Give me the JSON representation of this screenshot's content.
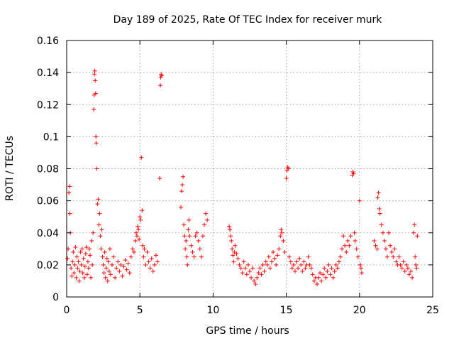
{
  "chart_data": {
    "type": "scatter",
    "title": "Day 189 of 2025, Rate Of TEC Index for receiver murk",
    "xlabel": "GPS time / hours",
    "ylabel": "ROTI / TECUs",
    "xlim": [
      0,
      25
    ],
    "ylim": [
      0,
      0.16
    ],
    "x_ticks": [
      0,
      5,
      10,
      15,
      20,
      25
    ],
    "x_tick_labels": [
      "0",
      "5",
      "10",
      "15",
      "20",
      "25"
    ],
    "y_ticks": [
      0,
      0.02,
      0.04,
      0.06,
      0.08,
      0.1,
      0.12,
      0.14,
      0.16
    ],
    "y_tick_labels": [
      "0",
      "0.02",
      "0.04",
      "0.06",
      "0.08",
      "0.1",
      "0.12",
      "0.14",
      "0.16"
    ],
    "grid": true,
    "marker": "plus",
    "color": "#ff0000",
    "series": [
      {
        "points": [
          [
            0.05,
            0.024
          ],
          [
            0.1,
            0.03
          ],
          [
            0.15,
            0.065
          ],
          [
            0.2,
            0.069
          ],
          [
            0.22,
            0.052
          ],
          [
            0.25,
            0.04
          ],
          [
            0.3,
            0.018
          ],
          [
            0.35,
            0.013
          ],
          [
            0.4,
            0.022
          ],
          [
            0.45,
            0.028
          ],
          [
            0.5,
            0.015
          ],
          [
            0.55,
            0.02
          ],
          [
            0.6,
            0.031
          ],
          [
            0.65,
            0.012
          ],
          [
            0.7,
            0.025
          ],
          [
            0.75,
            0.018
          ],
          [
            0.8,
            0.022
          ],
          [
            0.85,
            0.01
          ],
          [
            0.9,
            0.016
          ],
          [
            0.95,
            0.028
          ],
          [
            1.0,
            0.02
          ],
          [
            1.05,
            0.03
          ],
          [
            1.1,
            0.015
          ],
          [
            1.15,
            0.024
          ],
          [
            1.2,
            0.012
          ],
          [
            1.25,
            0.019
          ],
          [
            1.3,
            0.027
          ],
          [
            1.35,
            0.031
          ],
          [
            1.4,
            0.014
          ],
          [
            1.45,
            0.022
          ],
          [
            1.5,
            0.018
          ],
          [
            1.55,
            0.03
          ],
          [
            1.6,
            0.026
          ],
          [
            1.65,
            0.012
          ],
          [
            1.7,
            0.035
          ],
          [
            1.75,
            0.02
          ],
          [
            1.8,
            0.04
          ],
          [
            1.85,
            0.117
          ],
          [
            1.88,
            0.126
          ],
          [
            1.9,
            0.139
          ],
          [
            1.92,
            0.141
          ],
          [
            1.95,
            0.135
          ],
          [
            1.98,
            0.127
          ],
          [
            2.0,
            0.1
          ],
          [
            2.02,
            0.096
          ],
          [
            2.05,
            0.08
          ],
          [
            2.1,
            0.058
          ],
          [
            2.15,
            0.061
          ],
          [
            2.2,
            0.045
          ],
          [
            2.25,
            0.052
          ],
          [
            2.3,
            0.038
          ],
          [
            2.35,
            0.03
          ],
          [
            2.4,
            0.042
          ],
          [
            2.45,
            0.025
          ],
          [
            2.5,
            0.02
          ],
          [
            2.55,
            0.015
          ],
          [
            2.6,
            0.028
          ],
          [
            2.65,
            0.012
          ],
          [
            2.7,
            0.018
          ],
          [
            2.75,
            0.024
          ],
          [
            2.8,
            0.01
          ],
          [
            2.85,
            0.022
          ],
          [
            2.9,
            0.016
          ],
          [
            2.95,
            0.03
          ],
          [
            3.0,
            0.014
          ],
          [
            3.1,
            0.02
          ],
          [
            3.2,
            0.025
          ],
          [
            3.3,
            0.012
          ],
          [
            3.4,
            0.018
          ],
          [
            3.5,
            0.022
          ],
          [
            3.6,
            0.016
          ],
          [
            3.7,
            0.02
          ],
          [
            3.8,
            0.013
          ],
          [
            3.9,
            0.019
          ],
          [
            4.0,
            0.023
          ],
          [
            4.1,
            0.017
          ],
          [
            4.2,
            0.021
          ],
          [
            4.3,
            0.015
          ],
          [
            4.4,
            0.025
          ],
          [
            4.5,
            0.03
          ],
          [
            4.6,
            0.028
          ],
          [
            4.7,
            0.035
          ],
          [
            4.75,
            0.04
          ],
          [
            4.8,
            0.038
          ],
          [
            4.85,
            0.044
          ],
          [
            4.9,
            0.042
          ],
          [
            4.95,
            0.036
          ],
          [
            5.0,
            0.05
          ],
          [
            5.05,
            0.048
          ],
          [
            5.1,
            0.087
          ],
          [
            5.15,
            0.054
          ],
          [
            5.2,
            0.032
          ],
          [
            5.25,
            0.025
          ],
          [
            5.3,
            0.03
          ],
          [
            5.4,
            0.02
          ],
          [
            5.5,
            0.028
          ],
          [
            5.6,
            0.022
          ],
          [
            5.7,
            0.018
          ],
          [
            5.8,
            0.024
          ],
          [
            5.9,
            0.016
          ],
          [
            6.0,
            0.02
          ],
          [
            6.1,
            0.026
          ],
          [
            6.2,
            0.022
          ],
          [
            6.35,
            0.074
          ],
          [
            6.4,
            0.132
          ],
          [
            6.42,
            0.137
          ],
          [
            6.45,
            0.139
          ],
          [
            6.48,
            0.138
          ],
          [
            7.8,
            0.056
          ],
          [
            7.85,
            0.066
          ],
          [
            7.9,
            0.07
          ],
          [
            7.95,
            0.075
          ],
          [
            8.0,
            0.045
          ],
          [
            8.05,
            0.038
          ],
          [
            8.1,
            0.03
          ],
          [
            8.15,
            0.035
          ],
          [
            8.2,
            0.025
          ],
          [
            8.25,
            0.02
          ],
          [
            8.3,
            0.042
          ],
          [
            8.35,
            0.048
          ],
          [
            8.4,
            0.038
          ],
          [
            8.5,
            0.032
          ],
          [
            8.6,
            0.028
          ],
          [
            8.7,
            0.025
          ],
          [
            8.8,
            0.038
          ],
          [
            8.9,
            0.04
          ],
          [
            9.0,
            0.035
          ],
          [
            9.1,
            0.03
          ],
          [
            9.2,
            0.025
          ],
          [
            9.3,
            0.038
          ],
          [
            9.4,
            0.045
          ],
          [
            9.5,
            0.052
          ],
          [
            9.6,
            0.048
          ],
          [
            11.1,
            0.044
          ],
          [
            11.15,
            0.042
          ],
          [
            11.2,
            0.038
          ],
          [
            11.25,
            0.035
          ],
          [
            11.3,
            0.03
          ],
          [
            11.35,
            0.026
          ],
          [
            11.4,
            0.022
          ],
          [
            11.45,
            0.028
          ],
          [
            11.5,
            0.032
          ],
          [
            11.6,
            0.027
          ],
          [
            11.7,
            0.024
          ],
          [
            11.8,
            0.02
          ],
          [
            11.9,
            0.018
          ],
          [
            12.0,
            0.015
          ],
          [
            12.1,
            0.022
          ],
          [
            12.2,
            0.018
          ],
          [
            12.3,
            0.014
          ],
          [
            12.4,
            0.02
          ],
          [
            12.5,
            0.016
          ],
          [
            12.6,
            0.012
          ],
          [
            12.7,
            0.018
          ],
          [
            12.8,
            0.01
          ],
          [
            12.9,
            0.008
          ],
          [
            13.0,
            0.012
          ],
          [
            13.1,
            0.015
          ],
          [
            13.2,
            0.018
          ],
          [
            13.3,
            0.014
          ],
          [
            13.4,
            0.02
          ],
          [
            13.5,
            0.016
          ],
          [
            13.6,
            0.022
          ],
          [
            13.7,
            0.02
          ],
          [
            13.8,
            0.025
          ],
          [
            13.9,
            0.018
          ],
          [
            14.0,
            0.022
          ],
          [
            14.1,
            0.028
          ],
          [
            14.2,
            0.024
          ],
          [
            14.3,
            0.02
          ],
          [
            14.4,
            0.026
          ],
          [
            14.5,
            0.03
          ],
          [
            14.6,
            0.038
          ],
          [
            14.65,
            0.042
          ],
          [
            14.7,
            0.04
          ],
          [
            14.8,
            0.035
          ],
          [
            14.9,
            0.028
          ],
          [
            15.0,
            0.074
          ],
          [
            15.05,
            0.079
          ],
          [
            15.1,
            0.081
          ],
          [
            15.15,
            0.08
          ],
          [
            15.2,
            0.025
          ],
          [
            15.3,
            0.022
          ],
          [
            15.4,
            0.018
          ],
          [
            15.5,
            0.02
          ],
          [
            15.6,
            0.016
          ],
          [
            15.7,
            0.022
          ],
          [
            15.8,
            0.018
          ],
          [
            15.9,
            0.024
          ],
          [
            16.0,
            0.02
          ],
          [
            16.1,
            0.016
          ],
          [
            16.2,
            0.022
          ],
          [
            16.3,
            0.018
          ],
          [
            16.4,
            0.02
          ],
          [
            16.5,
            0.025
          ],
          [
            16.6,
            0.02
          ],
          [
            16.7,
            0.018
          ],
          [
            16.8,
            0.014
          ],
          [
            16.9,
            0.01
          ],
          [
            17.0,
            0.012
          ],
          [
            17.1,
            0.008
          ],
          [
            17.2,
            0.012
          ],
          [
            17.3,
            0.015
          ],
          [
            17.4,
            0.01
          ],
          [
            17.5,
            0.014
          ],
          [
            17.6,
            0.018
          ],
          [
            17.7,
            0.012
          ],
          [
            17.8,
            0.016
          ],
          [
            17.9,
            0.02
          ],
          [
            18.0,
            0.014
          ],
          [
            18.1,
            0.018
          ],
          [
            18.2,
            0.012
          ],
          [
            18.3,
            0.016
          ],
          [
            18.4,
            0.02
          ],
          [
            18.5,
            0.018
          ],
          [
            18.6,
            0.022
          ],
          [
            18.7,
            0.025
          ],
          [
            18.8,
            0.03
          ],
          [
            18.9,
            0.038
          ],
          [
            19.0,
            0.032
          ],
          [
            19.1,
            0.028
          ],
          [
            19.2,
            0.035
          ],
          [
            19.3,
            0.032
          ],
          [
            19.4,
            0.038
          ],
          [
            19.5,
            0.076
          ],
          [
            19.55,
            0.078
          ],
          [
            19.6,
            0.077
          ],
          [
            19.65,
            0.04
          ],
          [
            19.7,
            0.035
          ],
          [
            19.8,
            0.03
          ],
          [
            19.9,
            0.025
          ],
          [
            20.0,
            0.06
          ],
          [
            20.05,
            0.02
          ],
          [
            20.1,
            0.018
          ],
          [
            20.15,
            0.015
          ],
          [
            21.0,
            0.035
          ],
          [
            21.1,
            0.032
          ],
          [
            21.2,
            0.03
          ],
          [
            21.25,
            0.062
          ],
          [
            21.3,
            0.065
          ],
          [
            21.35,
            0.055
          ],
          [
            21.4,
            0.052
          ],
          [
            21.5,
            0.045
          ],
          [
            21.6,
            0.04
          ],
          [
            21.7,
            0.035
          ],
          [
            21.8,
            0.03
          ],
          [
            21.9,
            0.025
          ],
          [
            22.0,
            0.04
          ],
          [
            22.1,
            0.032
          ],
          [
            22.2,
            0.028
          ],
          [
            22.3,
            0.025
          ],
          [
            22.4,
            0.03
          ],
          [
            22.5,
            0.022
          ],
          [
            22.6,
            0.02
          ],
          [
            22.7,
            0.025
          ],
          [
            22.8,
            0.02
          ],
          [
            22.9,
            0.018
          ],
          [
            23.0,
            0.022
          ],
          [
            23.1,
            0.016
          ],
          [
            23.2,
            0.02
          ],
          [
            23.3,
            0.018
          ],
          [
            23.4,
            0.014
          ],
          [
            23.5,
            0.016
          ],
          [
            23.6,
            0.012
          ],
          [
            23.7,
            0.04
          ],
          [
            23.75,
            0.045
          ],
          [
            23.8,
            0.025
          ],
          [
            23.85,
            0.02
          ],
          [
            23.9,
            0.018
          ],
          [
            23.95,
            0.038
          ]
        ]
      }
    ]
  }
}
